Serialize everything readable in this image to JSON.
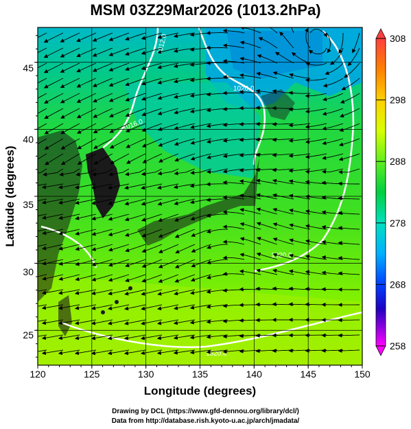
{
  "title": "MSM 03Z29Mar2026 (1013.2hPa)",
  "axes": {
    "x_label": "Longitude (degrees)",
    "y_label": "Latitude  (degrees)",
    "x_ticks": [
      "120",
      "125",
      "130",
      "135",
      "140",
      "145",
      "150"
    ],
    "y_ticks": [
      "25",
      "30",
      "35",
      "40",
      "45"
    ],
    "x_range": [
      120,
      150
    ],
    "y_range": [
      22.4,
      47.6
    ]
  },
  "colorbar": {
    "ticks": [
      "308",
      "298",
      "288",
      "278",
      "268",
      "258"
    ],
    "range": [
      258,
      308
    ]
  },
  "contour_labels": [
    "1020.0",
    "1020.0",
    "1012.0",
    "1016.0",
    "1020.0"
  ],
  "colors": {
    "land": "#1c1c1c",
    "contour": "#ffffff",
    "streamline": "#000000",
    "grid": "#000000"
  },
  "credits": {
    "line1": "Drawing by DCL (https://www.gfd-dennou.org/library/dcl/)",
    "line2": "Data from http://database.rish.kyoto-u.ac.jp/arch/jmadata/"
  }
}
